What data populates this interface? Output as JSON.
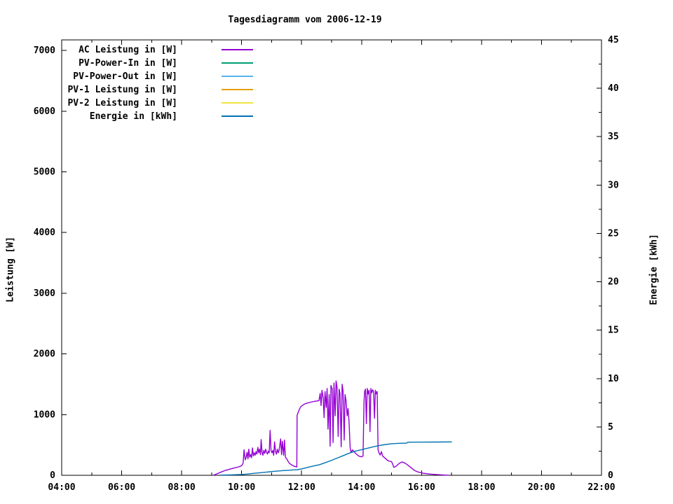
{
  "chart_data": {
    "type": "line",
    "title": "Tagesdiagramm vom 2006-12-19",
    "x_axis": {
      "unit": "time-of-day",
      "min_hour": 4,
      "max_hour": 22,
      "major_tick_hours": [
        4,
        6,
        8,
        10,
        12,
        14,
        16,
        18,
        20,
        22
      ],
      "tick_labels": [
        "04:00",
        "06:00",
        "08:00",
        "10:00",
        "12:00",
        "14:00",
        "16:00",
        "18:00",
        "20:00",
        "22:00"
      ],
      "minor_tick_interval_hours": 1
    },
    "y_left": {
      "label": "Leistung [W]",
      "min": 0,
      "max": 7175,
      "tick_values": [
        0,
        1000,
        2000,
        3000,
        4000,
        5000,
        6000,
        7000
      ],
      "tick_labels": [
        "0",
        "1000",
        "2000",
        "3000",
        "4000",
        "5000",
        "6000",
        "7000"
      ]
    },
    "y_right": {
      "label": "Energie [kWh]",
      "min": 0,
      "max": 45,
      "tick_values": [
        0,
        5,
        10,
        15,
        20,
        25,
        30,
        35,
        40,
        45
      ],
      "tick_labels": [
        "0",
        "5",
        "10",
        "15",
        "20",
        "25",
        "30",
        "35",
        "40",
        "45"
      ],
      "minor_tick_interval": 2.5
    },
    "grid": false,
    "legend_position": "top-left-inside",
    "legend": [
      {
        "label": "AC Leistung in [W]",
        "color": "#9400d3"
      },
      {
        "label": "PV-Power-In in [W]",
        "color": "#009e73"
      },
      {
        "label": "PV-Power-Out in [W]",
        "color": "#56b4e9"
      },
      {
        "label": "PV-1 Leistung in [W]",
        "color": "#e69f00"
      },
      {
        "label": "PV-2 Leistung in [W]",
        "color": "#f0e442"
      },
      {
        "label": "Energie in [kWh]",
        "color": "#0072b2"
      }
    ],
    "series": [
      {
        "name": "AC Leistung in [W]",
        "color": "#9400d3",
        "axis": "left",
        "points": [
          [
            9.05,
            0
          ],
          [
            9.15,
            18
          ],
          [
            9.3,
            50
          ],
          [
            9.45,
            80
          ],
          [
            9.6,
            100
          ],
          [
            9.75,
            120
          ],
          [
            9.9,
            138
          ],
          [
            10.0,
            158
          ],
          [
            10.05,
            200
          ],
          [
            10.08,
            420
          ],
          [
            10.12,
            255
          ],
          [
            10.15,
            295
          ],
          [
            10.18,
            380
          ],
          [
            10.21,
            270
          ],
          [
            10.24,
            430
          ],
          [
            10.27,
            300
          ],
          [
            10.3,
            340
          ],
          [
            10.33,
            290
          ],
          [
            10.36,
            450
          ],
          [
            10.39,
            320
          ],
          [
            10.42,
            370
          ],
          [
            10.45,
            330
          ],
          [
            10.48,
            390
          ],
          [
            10.51,
            350
          ],
          [
            10.54,
            460
          ],
          [
            10.57,
            370
          ],
          [
            10.6,
            430
          ],
          [
            10.63,
            340
          ],
          [
            10.65,
            590
          ],
          [
            10.68,
            380
          ],
          [
            10.71,
            330
          ],
          [
            10.74,
            410
          ],
          [
            10.77,
            360
          ],
          [
            10.8,
            430
          ],
          [
            10.83,
            380
          ],
          [
            10.86,
            350
          ],
          [
            10.89,
            400
          ],
          [
            10.92,
            370
          ],
          [
            10.95,
            740
          ],
          [
            10.98,
            410
          ],
          [
            11.01,
            370
          ],
          [
            11.04,
            410
          ],
          [
            11.07,
            330
          ],
          [
            11.1,
            550
          ],
          [
            11.13,
            390
          ],
          [
            11.16,
            350
          ],
          [
            11.19,
            430
          ],
          [
            11.22,
            370
          ],
          [
            11.25,
            410
          ],
          [
            11.3,
            600
          ],
          [
            11.33,
            340
          ],
          [
            11.36,
            560
          ],
          [
            11.4,
            330
          ],
          [
            11.43,
            580
          ],
          [
            11.46,
            300
          ],
          [
            11.5,
            275
          ],
          [
            11.55,
            230
          ],
          [
            11.6,
            195
          ],
          [
            11.67,
            170
          ],
          [
            11.74,
            152
          ],
          [
            11.8,
            142
          ],
          [
            11.84,
            138
          ],
          [
            11.85,
            990
          ],
          [
            11.88,
            1030
          ],
          [
            11.92,
            1080
          ],
          [
            11.97,
            1130
          ],
          [
            12.05,
            1160
          ],
          [
            12.15,
            1185
          ],
          [
            12.3,
            1205
          ],
          [
            12.45,
            1220
          ],
          [
            12.58,
            1230
          ],
          [
            12.62,
            1350
          ],
          [
            12.65,
            1150
          ],
          [
            12.68,
            1400
          ],
          [
            12.72,
            1280
          ],
          [
            12.75,
            950
          ],
          [
            12.78,
            1380
          ],
          [
            12.82,
            1120
          ],
          [
            12.85,
            1430
          ],
          [
            12.88,
            760
          ],
          [
            12.92,
            1330
          ],
          [
            12.95,
            480
          ],
          [
            12.98,
            1480
          ],
          [
            13.02,
            1420
          ],
          [
            13.05,
            540
          ],
          [
            13.08,
            1520
          ],
          [
            13.12,
            980
          ],
          [
            13.15,
            1555
          ],
          [
            13.18,
            1460
          ],
          [
            13.22,
            640
          ],
          [
            13.25,
            1420
          ],
          [
            13.28,
            1350
          ],
          [
            13.32,
            470
          ],
          [
            13.35,
            1500
          ],
          [
            13.38,
            1400
          ],
          [
            13.42,
            580
          ],
          [
            13.45,
            1330
          ],
          [
            13.48,
            1240
          ],
          [
            13.52,
            980
          ],
          [
            13.55,
            1100
          ],
          [
            13.58,
            900
          ],
          [
            13.62,
            450
          ],
          [
            13.65,
            380
          ],
          [
            13.7,
            420
          ],
          [
            13.75,
            390
          ],
          [
            13.8,
            360
          ],
          [
            13.85,
            340
          ],
          [
            13.9,
            320
          ],
          [
            13.95,
            310
          ],
          [
            14.0,
            305
          ],
          [
            14.05,
            320
          ],
          [
            14.08,
            1200
          ],
          [
            14.1,
            1380
          ],
          [
            14.13,
            1420
          ],
          [
            14.16,
            850
          ],
          [
            14.19,
            1430
          ],
          [
            14.22,
            1340
          ],
          [
            14.25,
            1400
          ],
          [
            14.28,
            720
          ],
          [
            14.31,
            1430
          ],
          [
            14.34,
            1360
          ],
          [
            14.37,
            1410
          ],
          [
            14.4,
            1380
          ],
          [
            14.43,
            940
          ],
          [
            14.46,
            1400
          ],
          [
            14.49,
            1340
          ],
          [
            14.52,
            1380
          ],
          [
            14.55,
            420
          ],
          [
            14.58,
            370
          ],
          [
            14.62,
            335
          ],
          [
            14.66,
            390
          ],
          [
            14.7,
            320
          ],
          [
            14.78,
            285
          ],
          [
            14.88,
            240
          ],
          [
            15.0,
            225
          ],
          [
            15.08,
            130
          ],
          [
            15.15,
            150
          ],
          [
            15.25,
            195
          ],
          [
            15.35,
            220
          ],
          [
            15.45,
            200
          ],
          [
            15.55,
            165
          ],
          [
            15.65,
            125
          ],
          [
            15.75,
            85
          ],
          [
            15.85,
            60
          ],
          [
            15.95,
            45
          ],
          [
            16.05,
            35
          ],
          [
            16.15,
            28
          ],
          [
            16.3,
            20
          ],
          [
            16.45,
            14
          ],
          [
            16.6,
            9
          ],
          [
            16.75,
            5
          ],
          [
            16.9,
            2
          ]
        ]
      },
      {
        "name": "PV-Power-In in [W]",
        "color": "#009e73",
        "axis": "left",
        "points": []
      },
      {
        "name": "PV-Power-Out in [W]",
        "color": "#56b4e9",
        "axis": "left",
        "points": []
      },
      {
        "name": "PV-1 Leistung in [W]",
        "color": "#e69f00",
        "axis": "left",
        "points": []
      },
      {
        "name": "PV-2 Leistung in [W]",
        "color": "#f0e442",
        "axis": "left",
        "points": []
      },
      {
        "name": "Energie in [kWh]",
        "color": "#0072b2",
        "axis": "right",
        "points": [
          [
            9.3,
            0.02
          ],
          [
            9.6,
            0.04
          ],
          [
            9.9,
            0.07
          ],
          [
            10.0,
            0.09
          ],
          [
            10.2,
            0.13
          ],
          [
            10.4,
            0.2
          ],
          [
            10.6,
            0.26
          ],
          [
            10.8,
            0.32
          ],
          [
            11.0,
            0.38
          ],
          [
            11.2,
            0.44
          ],
          [
            11.4,
            0.49
          ],
          [
            11.6,
            0.53
          ],
          [
            11.8,
            0.57
          ],
          [
            11.85,
            0.58
          ],
          [
            12.0,
            0.66
          ],
          [
            12.2,
            0.82
          ],
          [
            12.4,
            0.96
          ],
          [
            12.6,
            1.1
          ],
          [
            12.8,
            1.32
          ],
          [
            13.0,
            1.55
          ],
          [
            13.2,
            1.8
          ],
          [
            13.4,
            2.05
          ],
          [
            13.6,
            2.3
          ],
          [
            13.8,
            2.5
          ],
          [
            14.0,
            2.65
          ],
          [
            14.2,
            2.8
          ],
          [
            14.4,
            2.95
          ],
          [
            14.6,
            3.08
          ],
          [
            14.8,
            3.18
          ],
          [
            15.0,
            3.26
          ],
          [
            15.2,
            3.3
          ],
          [
            15.45,
            3.32
          ],
          [
            15.5,
            3.32
          ],
          [
            15.55,
            3.42
          ],
          [
            16.0,
            3.43
          ],
          [
            16.5,
            3.44
          ],
          [
            17.0,
            3.45
          ]
        ]
      }
    ]
  }
}
